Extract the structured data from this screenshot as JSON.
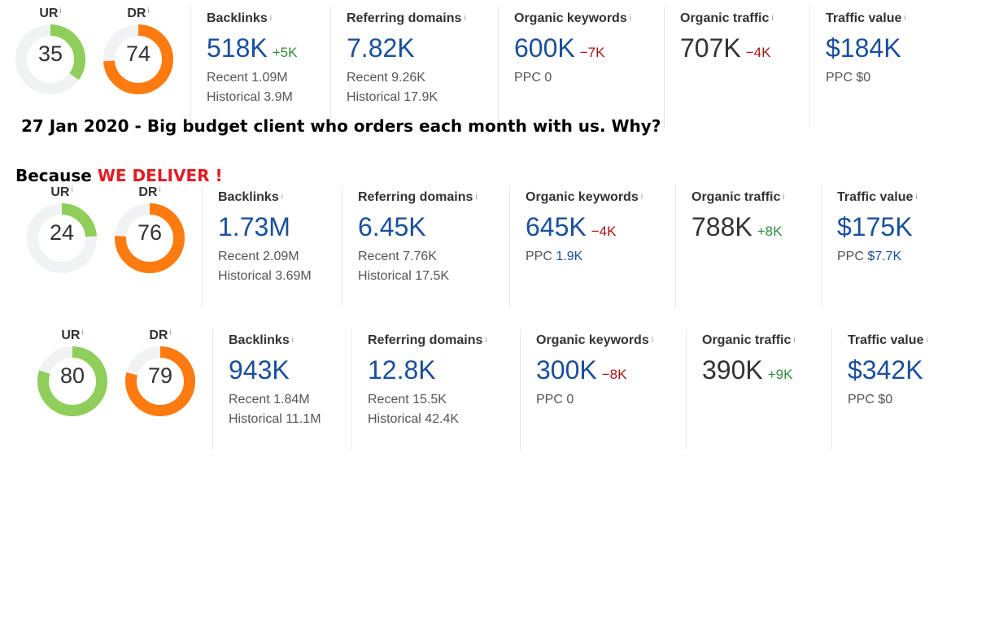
{
  "info_glyph": "i",
  "caption_date": "27 Jan 2020 - Big budget client who orders each month with us. Why?",
  "caption_because": "Because",
  "caption_deliver": "WE DELIVER !",
  "colors": {
    "ur_fill": "#8fce5a",
    "dr_fill": "#ff7a0f",
    "track": "#f1f2f4",
    "accent": "#1a4f9c"
  },
  "panels": [
    {
      "ur": {
        "label": "UR",
        "value": "35",
        "fraction": 0.35
      },
      "dr": {
        "label": "DR",
        "value": "74",
        "fraction": 0.74
      },
      "backlinks": {
        "label": "Backlinks",
        "value": "518K",
        "delta": "+5K",
        "recent": "Recent 1.09M",
        "historical": "Historical 3.9M"
      },
      "referring_domains": {
        "label": "Referring domains",
        "value": "7.82K",
        "recent": "Recent 9.26K",
        "historical": "Historical 17.9K"
      },
      "organic_keywords": {
        "label": "Organic keywords",
        "value": "600K",
        "delta": "−7K",
        "ppc_label": "PPC",
        "ppc_value": "0"
      },
      "organic_traffic": {
        "label": "Organic traffic",
        "value": "707K",
        "delta": "−4K"
      },
      "traffic_value": {
        "label": "Traffic value",
        "value": "$184K",
        "ppc_label": "PPC",
        "ppc_value": "$0"
      }
    },
    {
      "ur": {
        "label": "UR",
        "value": "24",
        "fraction": 0.24
      },
      "dr": {
        "label": "DR",
        "value": "76",
        "fraction": 0.76
      },
      "backlinks": {
        "label": "Backlinks",
        "value": "1.73M",
        "recent": "Recent 2.09M",
        "historical": "Historical 3.69M"
      },
      "referring_domains": {
        "label": "Referring domains",
        "value": "6.45K",
        "recent": "Recent 7.76K",
        "historical": "Historical 17.5K"
      },
      "organic_keywords": {
        "label": "Organic keywords",
        "value": "645K",
        "delta": "−4K",
        "ppc_label": "PPC",
        "ppc_value": "1.9K"
      },
      "organic_traffic": {
        "label": "Organic traffic",
        "value": "788K",
        "delta": "+8K"
      },
      "traffic_value": {
        "label": "Traffic value",
        "value": "$175K",
        "ppc_label": "PPC",
        "ppc_value": "$7.7K"
      }
    },
    {
      "ur": {
        "label": "UR",
        "value": "80",
        "fraction": 0.8
      },
      "dr": {
        "label": "DR",
        "value": "79",
        "fraction": 0.79
      },
      "backlinks": {
        "label": "Backlinks",
        "value": "943K",
        "recent": "Recent 1.84M",
        "historical": "Historical 11.1M"
      },
      "referring_domains": {
        "label": "Referring domains",
        "value": "12.8K",
        "recent": "Recent 15.5K",
        "historical": "Historical 42.4K"
      },
      "organic_keywords": {
        "label": "Organic keywords",
        "value": "300K",
        "delta": "−8K",
        "ppc_label": "PPC",
        "ppc_value": "0"
      },
      "organic_traffic": {
        "label": "Organic traffic",
        "value": "390K",
        "delta": "+9K"
      },
      "traffic_value": {
        "label": "Traffic value",
        "value": "$342K",
        "ppc_label": "PPC",
        "ppc_value": "$0"
      }
    }
  ]
}
